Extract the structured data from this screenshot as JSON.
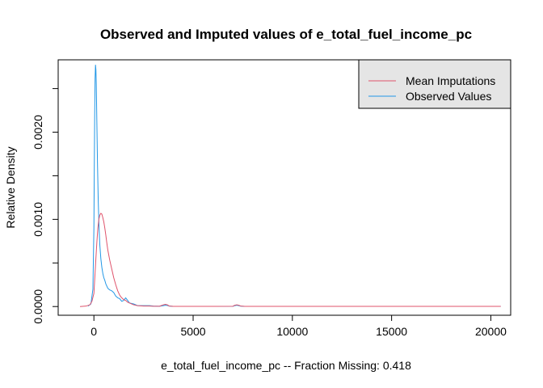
{
  "chart_data": {
    "type": "line",
    "title": "Observed and Imputed values of e_total_fuel_income_pc",
    "xlabel": "e_total_fuel_income_pc   --  Fraction Missing: 0.418",
    "ylabel": "Relative Density",
    "xlim": [
      -1800,
      21000
    ],
    "ylim": [
      -0.0001,
      0.00283
    ],
    "x_ticks": [
      0,
      5000,
      10000,
      15000,
      20000
    ],
    "x_tick_labels": [
      "0",
      "5000",
      "10000",
      "15000",
      "20000"
    ],
    "y_ticks": [
      0,
      0.0005,
      0.001,
      0.0015,
      0.002,
      0.0025
    ],
    "y_tick_labels": [
      "0.0000",
      "",
      "0.0010",
      "",
      "0.0020",
      ""
    ],
    "grid": false,
    "legend_position": "top-right",
    "series": [
      {
        "name": "Mean Imputations",
        "color": "#DF536B",
        "x": [
          -700,
          -400,
          -200,
          -100,
          0,
          50,
          100,
          150,
          200,
          250,
          300,
          350,
          400,
          450,
          500,
          550,
          600,
          650,
          700,
          800,
          900,
          1000,
          1100,
          1200,
          1300,
          1400,
          1500,
          1600,
          1700,
          1800,
          2000,
          2200,
          2500,
          2800,
          3000,
          3300,
          3500,
          3600,
          3700,
          3800,
          4000,
          5000,
          6000,
          7000,
          7100,
          7200,
          7300,
          7400,
          7600,
          8000,
          10000,
          15000,
          20000,
          20500
        ],
        "y": [
          0,
          5e-06,
          2e-05,
          6e-05,
          0.00015,
          0.00035,
          0.00055,
          0.00074,
          0.0009,
          0.001,
          0.00105,
          0.00107,
          0.00106,
          0.00102,
          0.00097,
          0.0009,
          0.00082,
          0.00073,
          0.00065,
          0.00053,
          0.00043,
          0.00033,
          0.00025,
          0.00018,
          0.00013,
          0.0001,
          8e-05,
          7e-05,
          5e-05,
          4e-05,
          2e-05,
          1e-05,
          5e-06,
          5e-06,
          3e-06,
          3e-06,
          2e-05,
          2.5e-05,
          2e-05,
          5e-06,
          2e-06,
          2e-06,
          2e-06,
          3e-06,
          1.5e-05,
          2e-05,
          1.5e-05,
          5e-06,
          2e-06,
          2e-06,
          2e-06,
          2e-06,
          2e-06,
          2e-06
        ]
      },
      {
        "name": "Observed Values",
        "color": "#2297E6",
        "x": [
          -300,
          -150,
          -50,
          0,
          20,
          40,
          60,
          80,
          100,
          120,
          150,
          180,
          220,
          260,
          300,
          350,
          400,
          450,
          500,
          550,
          600,
          700,
          800,
          900,
          1000,
          1100,
          1200,
          1300,
          1400,
          1500,
          1600,
          1700,
          1800,
          2000,
          2200,
          2500,
          2800,
          3000,
          3300,
          3500,
          3600,
          3700,
          3800,
          4000,
          5000,
          6000,
          7000,
          7100,
          7200,
          7300,
          7400,
          7600,
          8000,
          10000,
          15000,
          20000,
          20500
        ],
        "y": [
          5e-06,
          3e-05,
          0.0002,
          0.0009,
          0.0016,
          0.0022,
          0.00262,
          0.00277,
          0.00272,
          0.00255,
          0.0021,
          0.00165,
          0.0012,
          0.0009,
          0.0007,
          0.00055,
          0.00045,
          0.00038,
          0.00033,
          0.0003,
          0.00026,
          0.00021,
          0.00019,
          0.00018,
          0.00016,
          0.00012,
          0.0001,
          9e-05,
          6e-05,
          7e-05,
          0.0001,
          7e-05,
          4e-05,
          3e-05,
          1e-05,
          1e-05,
          1e-05,
          5e-06,
          3e-06,
          1e-05,
          1.5e-05,
          1.2e-05,
          5e-06,
          2e-06,
          2e-06,
          2e-06,
          3e-06,
          1e-05,
          1.5e-05,
          1e-05,
          4e-06,
          2e-06,
          2e-06,
          2e-06,
          2e-06,
          2e-06,
          2e-06
        ]
      }
    ]
  }
}
